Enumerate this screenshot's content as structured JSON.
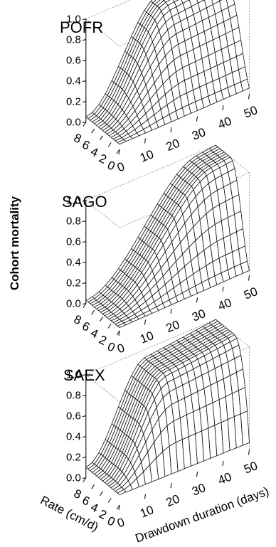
{
  "figure": {
    "ylabel": "Cohort mortality"
  },
  "chart_data": [
    {
      "type": "surface",
      "title": "POFR",
      "zlabel": "Cohort mortality",
      "xlabel": "Drawdown duration (days)",
      "ylabel": "Rate (cm/d)",
      "x_ticks": [
        "0",
        "10",
        "20",
        "30",
        "40",
        "50"
      ],
      "y_ticks": [
        "8",
        "6",
        "4",
        "2",
        "0"
      ],
      "z_ticks": [
        "0.0",
        "0.2",
        "0.4",
        "0.6",
        "0.8",
        "1.0"
      ],
      "xlim": [
        0,
        50
      ],
      "ylim": [
        0,
        8
      ],
      "zlim": [
        0,
        1
      ],
      "x_grid": [
        0,
        2.5,
        5,
        7.5,
        10,
        12.5,
        15,
        17.5,
        20,
        22.5,
        25,
        27.5,
        30,
        32.5,
        35,
        37.5,
        40,
        42.5,
        45,
        47.5,
        50
      ],
      "y_grid": [
        0,
        0.5,
        1,
        1.5,
        2,
        2.5,
        3,
        3.5,
        4,
        4.5,
        5,
        5.5,
        6,
        6.5,
        7,
        7.5,
        8
      ],
      "surface_peak": {
        "duration": 50,
        "rate": 8,
        "mortality": 1.0
      },
      "surface_max_at_rate_0": 0.06,
      "surface_at_duration_0": 0.05
    },
    {
      "type": "surface",
      "title": "SAGO",
      "zlabel": "Cohort mortality",
      "xlabel": "Drawdown duration (days)",
      "ylabel": "Rate (cm/d)",
      "x_ticks": [
        "0",
        "10",
        "20",
        "30",
        "40",
        "50"
      ],
      "y_ticks": [
        "8",
        "6",
        "4",
        "2",
        "0"
      ],
      "z_ticks": [
        "0.0",
        "0.2",
        "0.4",
        "0.6",
        "0.8",
        "1.0"
      ],
      "xlim": [
        0,
        50
      ],
      "ylim": [
        0,
        8
      ],
      "zlim": [
        0,
        1
      ],
      "x_grid": [
        0,
        2.5,
        5,
        7.5,
        10,
        12.5,
        15,
        17.5,
        20,
        22.5,
        25,
        27.5,
        30,
        32.5,
        35,
        37.5,
        40,
        42.5,
        45,
        47.5,
        50
      ],
      "y_grid": [
        0,
        0.5,
        1,
        1.5,
        2,
        2.5,
        3,
        3.5,
        4,
        4.5,
        5,
        5.5,
        6,
        6.5,
        7,
        7.5,
        8
      ],
      "surface_peak": {
        "duration": 50,
        "rate": 8,
        "mortality": 1.0
      },
      "surface_max_at_rate_0": 0.05,
      "surface_at_duration_0": 0.03
    },
    {
      "type": "surface",
      "title": "SAEX",
      "zlabel": "Cohort mortality",
      "xlabel": "Drawdown duration (days)",
      "ylabel": "Rate (cm/d)",
      "x_ticks": [
        "0",
        "10",
        "20",
        "30",
        "40",
        "50"
      ],
      "y_ticks": [
        "8",
        "6",
        "4",
        "2",
        "0"
      ],
      "z_ticks": [
        "0.0",
        "0.2",
        "0.4",
        "0.6",
        "0.8",
        "1.0"
      ],
      "xlim": [
        0,
        50
      ],
      "ylim": [
        0,
        8
      ],
      "zlim": [
        0,
        1
      ],
      "x_grid": [
        0,
        2.5,
        5,
        7.5,
        10,
        12.5,
        15,
        17.5,
        20,
        22.5,
        25,
        27.5,
        30,
        32.5,
        35,
        37.5,
        40,
        42.5,
        45,
        47.5,
        50
      ],
      "y_grid": [
        0,
        0.5,
        1,
        1.5,
        2,
        2.5,
        3,
        3.5,
        4,
        4.5,
        5,
        5.5,
        6,
        6.5,
        7,
        7.5,
        8
      ],
      "surface_peak": {
        "duration": 50,
        "rate": 8,
        "mortality": 1.0
      },
      "surface_max_at_rate_0": 0.07,
      "surface_at_duration_0": 0.1
    }
  ]
}
